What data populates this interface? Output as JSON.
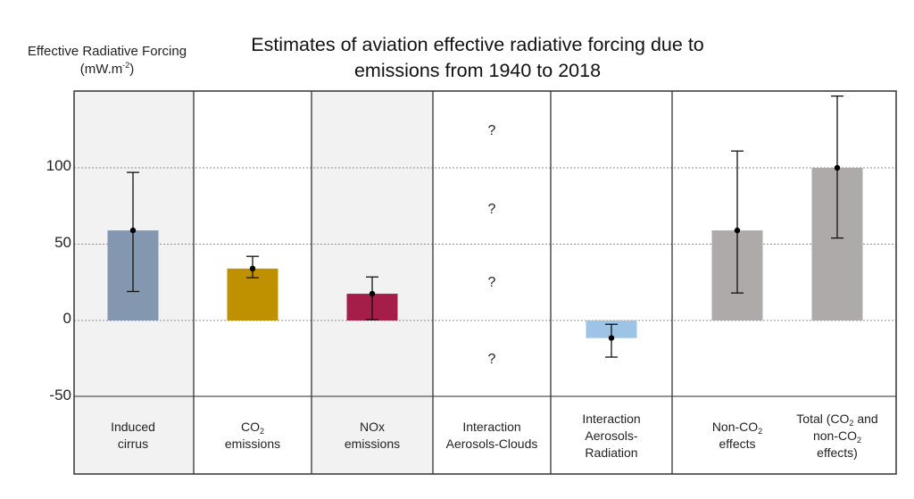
{
  "chart_data": {
    "type": "bar",
    "title": "Estimates of aviation effective radiative forcing due to emissions from 1940 to 2018",
    "title_line1": "Estimates of aviation effective radiative forcing due to",
    "title_line2": "emissions from 1940 to 2018",
    "ylabel": "Effective Radiative Forcing",
    "ylabel_unit_prefix": "(mW.m",
    "ylabel_unit_sup": "-2",
    "ylabel_unit_suffix": ")",
    "xlabel": "",
    "ylim": [
      -50,
      150
    ],
    "yticks": [
      100,
      50,
      0,
      -50
    ],
    "ytick_labels": [
      "100",
      "50",
      "0",
      "-50"
    ],
    "grid": "dotted horizontal at 100, 50, 0",
    "categories": [
      {
        "key": "cirrus",
        "label_parts": [
          "Induced",
          "cirrus"
        ],
        "value": 59,
        "err_low": 19,
        "err_high": 97,
        "color": "#8497b0",
        "background": "#f2f2f2"
      },
      {
        "key": "co2",
        "label_parts": [
          "CO|2|",
          "emissions"
        ],
        "value": 34,
        "err_low": 28,
        "err_high": 42,
        "color": "#bf9000",
        "background": "#ffffff"
      },
      {
        "key": "nox",
        "label_parts": [
          "NOx",
          "emissions"
        ],
        "value": 17.5,
        "err_low": 0.5,
        "err_high": 28.5,
        "color": "#a51e49",
        "background": "#f2f2f2"
      },
      {
        "key": "aero_clouds",
        "label_parts": [
          "Interaction",
          "Aerosols-Clouds"
        ],
        "value": null,
        "unknown": true,
        "unknown_marker": "?",
        "background": "#ffffff"
      },
      {
        "key": "aero_rad",
        "label_parts": [
          "Interaction",
          "Aerosols-",
          "Radiation"
        ],
        "value": -11.5,
        "err_low": -24,
        "err_high": -2.5,
        "color": "#9dc3e6",
        "background": "#ffffff"
      },
      {
        "key": "non_co2",
        "label_parts": [
          "Non-CO|2|",
          "effects"
        ],
        "value": 59,
        "err_low": 18,
        "err_high": 111,
        "color": "#aeaaaa",
        "background": "#f2f2f2"
      },
      {
        "key": "total",
        "label_parts": [
          "Total (CO|2| and",
          "non-CO|2|",
          "effects)"
        ],
        "value": 100,
        "err_low": 54,
        "err_high": 147,
        "color": "#aeaaaa",
        "background": "#f2f2f2"
      }
    ],
    "unknown_markers": [
      "?",
      "?",
      "?",
      "?"
    ]
  }
}
